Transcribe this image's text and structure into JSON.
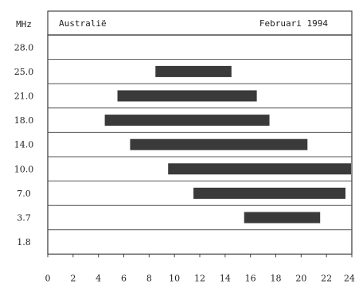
{
  "chart_data": {
    "type": "bar",
    "orientation": "horizontal-range",
    "unit_label": "MHz",
    "location": "Australië",
    "period": "Februari 1994",
    "xlim": [
      0,
      24
    ],
    "x_ticks": [
      0,
      2,
      4,
      6,
      8,
      10,
      12,
      14,
      16,
      18,
      20,
      22,
      24
    ],
    "categories": [
      "28.0",
      "25.0",
      "21.0",
      "18.0",
      "14.0",
      "10.0",
      "7.0",
      "3.7",
      "1.8"
    ],
    "ranges": [
      null,
      [
        8.5,
        14.5
      ],
      [
        5.5,
        16.5
      ],
      [
        4.5,
        17.5
      ],
      [
        6.5,
        20.5
      ],
      [
        9.5,
        24.0
      ],
      [
        11.5,
        23.5
      ],
      [
        15.5,
        21.5
      ],
      null
    ],
    "grid": "horizontal lines",
    "colors": {
      "bar": "#3a3a3a",
      "line": "#555555",
      "frame": "#444444"
    }
  }
}
